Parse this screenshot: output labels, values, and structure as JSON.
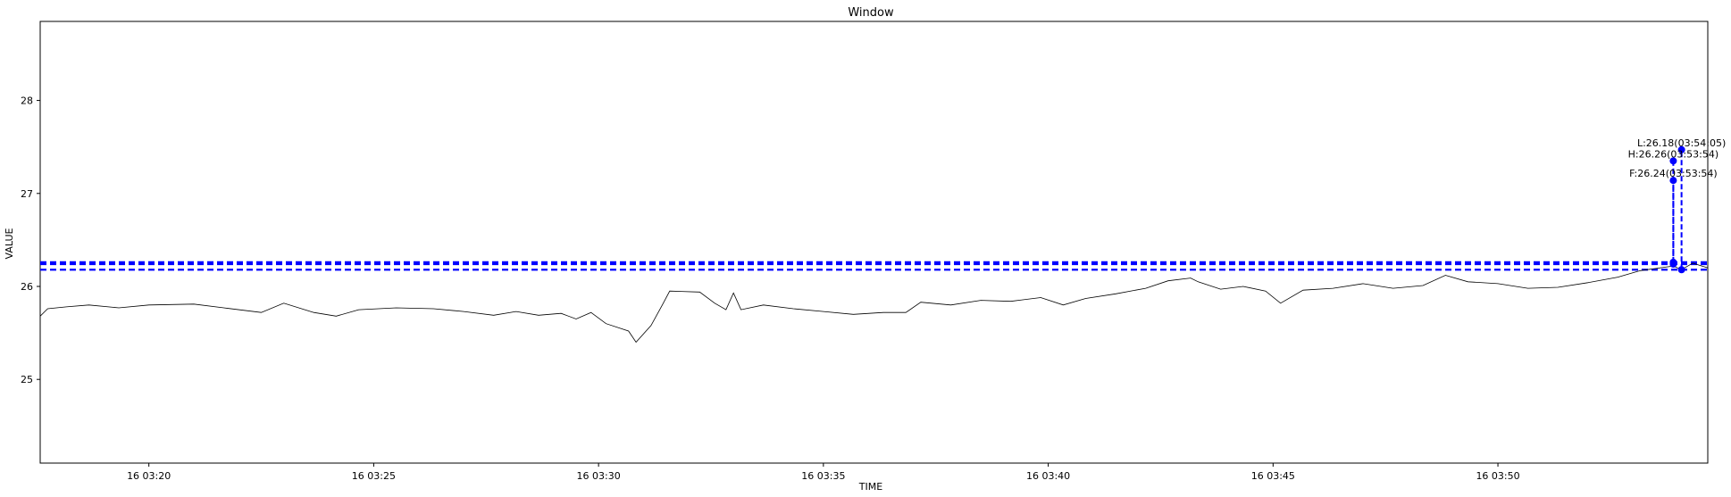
{
  "chart_data": {
    "type": "line",
    "title": "Window",
    "xlabel": "TIME",
    "ylabel": "VALUE",
    "x_range": [
      "16 03:17:35",
      "16 03:54:40"
    ],
    "ylim": [
      24.1,
      28.85
    ],
    "x_ticks": [
      {
        "t": "16 03:20:00",
        "label": "16 03:20"
      },
      {
        "t": "16 03:25:00",
        "label": "16 03:25"
      },
      {
        "t": "16 03:30:00",
        "label": "16 03:30"
      },
      {
        "t": "16 03:35:00",
        "label": "16 03:35"
      },
      {
        "t": "16 03:40:00",
        "label": "16 03:40"
      },
      {
        "t": "16 03:45:00",
        "label": "16 03:45"
      },
      {
        "t": "16 03:50:00",
        "label": "16 03:50"
      }
    ],
    "y_ticks": [
      25,
      26,
      27,
      28
    ],
    "grid": false,
    "series": [
      {
        "color": "#000000",
        "points": [
          [
            "16 03:17:35",
            25.68
          ],
          [
            "16 03:17:45",
            25.76
          ],
          [
            "16 03:18:10",
            25.78
          ],
          [
            "16 03:18:40",
            25.8
          ],
          [
            "16 03:19:20",
            25.77
          ],
          [
            "16 03:20:00",
            25.8
          ],
          [
            "16 03:21:00",
            25.81
          ],
          [
            "16 03:21:40",
            25.77
          ],
          [
            "16 03:22:30",
            25.72
          ],
          [
            "16 03:23:00",
            25.82
          ],
          [
            "16 03:23:40",
            25.72
          ],
          [
            "16 03:24:10",
            25.68
          ],
          [
            "16 03:24:40",
            25.75
          ],
          [
            "16 03:25:30",
            25.77
          ],
          [
            "16 03:26:20",
            25.76
          ],
          [
            "16 03:27:00",
            25.73
          ],
          [
            "16 03:27:40",
            25.69
          ],
          [
            "16 03:28:10",
            25.73
          ],
          [
            "16 03:28:40",
            25.69
          ],
          [
            "16 03:29:10",
            25.71
          ],
          [
            "16 03:29:30",
            25.65
          ],
          [
            "16 03:29:50",
            25.72
          ],
          [
            "16 03:30:10",
            25.6
          ],
          [
            "16 03:30:40",
            25.52
          ],
          [
            "16 03:30:50",
            25.4
          ],
          [
            "16 03:31:10",
            25.58
          ],
          [
            "16 03:31:25",
            25.8
          ],
          [
            "16 03:31:35",
            25.95
          ],
          [
            "16 03:32:15",
            25.94
          ],
          [
            "16 03:32:35",
            25.82
          ],
          [
            "16 03:32:50",
            25.75
          ],
          [
            "16 03:33:00",
            25.93
          ],
          [
            "16 03:33:10",
            25.75
          ],
          [
            "16 03:33:40",
            25.8
          ],
          [
            "16 03:34:20",
            25.76
          ],
          [
            "16 03:35:00",
            25.73
          ],
          [
            "16 03:35:40",
            25.7
          ],
          [
            "16 03:36:20",
            25.72
          ],
          [
            "16 03:36:50",
            25.72
          ],
          [
            "16 03:37:10",
            25.83
          ],
          [
            "16 03:37:50",
            25.8
          ],
          [
            "16 03:38:30",
            25.85
          ],
          [
            "16 03:39:10",
            25.84
          ],
          [
            "16 03:39:50",
            25.88
          ],
          [
            "16 03:40:20",
            25.8
          ],
          [
            "16 03:40:50",
            25.87
          ],
          [
            "16 03:41:30",
            25.92
          ],
          [
            "16 03:42:10",
            25.98
          ],
          [
            "16 03:42:40",
            26.06
          ],
          [
            "16 03:43:10",
            26.09
          ],
          [
            "16 03:43:20",
            26.05
          ],
          [
            "16 03:43:50",
            25.97
          ],
          [
            "16 03:44:20",
            26.0
          ],
          [
            "16 03:44:50",
            25.95
          ],
          [
            "16 03:45:10",
            25.82
          ],
          [
            "16 03:45:40",
            25.96
          ],
          [
            "16 03:46:20",
            25.98
          ],
          [
            "16 03:47:00",
            26.03
          ],
          [
            "16 03:47:40",
            25.98
          ],
          [
            "16 03:48:20",
            26.01
          ],
          [
            "16 03:48:50",
            26.12
          ],
          [
            "16 03:49:20",
            26.05
          ],
          [
            "16 03:50:00",
            26.03
          ],
          [
            "16 03:50:40",
            25.98
          ],
          [
            "16 03:51:20",
            25.99
          ],
          [
            "16 03:52:00",
            26.04
          ],
          [
            "16 03:52:40",
            26.1
          ],
          [
            "16 03:53:10",
            26.17
          ],
          [
            "16 03:53:54",
            26.22
          ],
          [
            "16 03:54:05",
            26.18
          ],
          [
            "16 03:54:20",
            26.25
          ],
          [
            "16 03:54:40",
            26.2
          ]
        ]
      }
    ],
    "reference_lines": [
      {
        "y": 26.26,
        "color": "#0000ff",
        "style": "dashed"
      },
      {
        "y": 26.24,
        "color": "#0000ff",
        "style": "dashed"
      },
      {
        "y": 26.18,
        "color": "#0000ff",
        "style": "dashed"
      }
    ],
    "annotations": [
      {
        "label": "L:26.18(03:54:05)",
        "t": "16 03:54:05",
        "y": 26.18,
        "label_y": 27.47
      },
      {
        "label": "H:26.26(03:53:54)",
        "t": "16 03:53:54",
        "y": 26.26,
        "label_y": 27.35
      },
      {
        "label": "F:26.24(03:53:54)",
        "t": "16 03:53:54",
        "y": 26.24,
        "label_y": 27.14
      }
    ],
    "accent_color": "#0000ff"
  }
}
